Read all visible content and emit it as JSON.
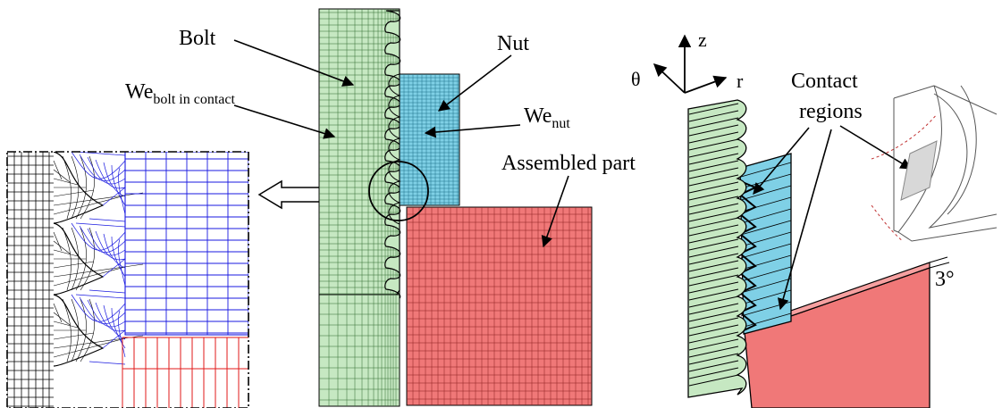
{
  "labels": {
    "bolt": "Bolt",
    "we_bolt_main": "We",
    "we_bolt_sub": "bolt in contact",
    "nut": "Nut",
    "we_nut_main": "We",
    "we_nut_sub": "nut",
    "assembled_part": "Assembled part",
    "axis_z": "z",
    "axis_theta": "θ",
    "axis_r": "r",
    "contact_regions_line1": "Contact",
    "contact_regions_line2": "regions",
    "angle": "3°"
  },
  "colors": {
    "bolt_green": "#c6e8c2",
    "nut_blue": "#7fd0e6",
    "part_red": "#f07878",
    "mesh_blue": "#1a1ae0",
    "mesh_red": "#e01a1a",
    "mesh_black": "#000000",
    "contact_gray": "#d8d8d8"
  },
  "icons": [
    "arrow-right-icon",
    "hollow-arrow-left-icon"
  ]
}
